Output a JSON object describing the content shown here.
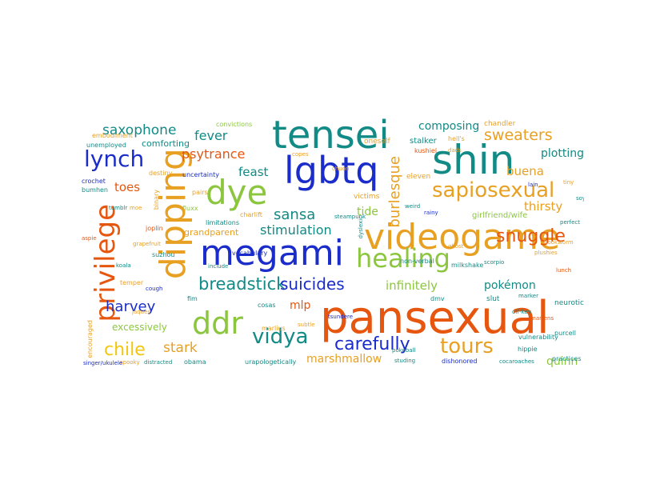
{
  "palette": {
    "orange": "#e6560f",
    "green": "#8cc63f",
    "blue": "#1a2cc9",
    "teal": "#128a85",
    "amber": "#e8a023",
    "gold": "#d99a1e",
    "yellow": "#f2c80f",
    "cyan": "#1fa5cf",
    "red": "#d8332b",
    "purple": "#7a46b8"
  },
  "words": [
    {
      "text": "pansexual",
      "color": "#e6560f"
    },
    {
      "text": "videogame",
      "color": "#e8a023"
    },
    {
      "text": "megami",
      "color": "#1a2cc9"
    },
    {
      "text": "dipping",
      "color": "#e8a023"
    },
    {
      "text": "tensei",
      "color": "#128a85"
    },
    {
      "text": "shin",
      "color": "#128a85"
    },
    {
      "text": "lgbtq",
      "color": "#1a2cc9"
    },
    {
      "text": "dye",
      "color": "#8cc63f"
    },
    {
      "text": "privilege",
      "color": "#e6560f"
    },
    {
      "text": "healing",
      "color": "#8cc63f"
    },
    {
      "text": "ddr",
      "color": "#8cc63f"
    },
    {
      "text": "sapiosexual",
      "color": "#e8a023"
    },
    {
      "text": "lynch",
      "color": "#1a2cc9"
    },
    {
      "text": "snuggle",
      "color": "#e6560f"
    },
    {
      "text": "vidya",
      "color": "#128a85"
    },
    {
      "text": "carefully",
      "color": "#1a2cc9"
    },
    {
      "text": "tours",
      "color": "#e8a023"
    },
    {
      "text": "chile",
      "color": "#f2c80f"
    },
    {
      "text": "breadstick",
      "color": "#128a85"
    },
    {
      "text": "suicides",
      "color": "#1a2cc9"
    },
    {
      "text": "sweaters",
      "color": "#e8a023"
    },
    {
      "text": "saxophone",
      "color": "#128a85"
    },
    {
      "text": "burlesque",
      "color": "#e8a023"
    },
    {
      "text": "harvey",
      "color": "#1a2cc9"
    },
    {
      "text": "stark",
      "color": "#e8a023"
    },
    {
      "text": "fever",
      "color": "#128a85"
    },
    {
      "text": "psytrance",
      "color": "#e6560f"
    },
    {
      "text": "sansa",
      "color": "#128a85"
    },
    {
      "text": "stimulation",
      "color": "#128a85"
    },
    {
      "text": "composing",
      "color": "#128a85"
    },
    {
      "text": "plotting",
      "color": "#128a85"
    },
    {
      "text": "buena",
      "color": "#e8a023"
    },
    {
      "text": "thirsty",
      "color": "#e8a023"
    },
    {
      "text": "infinitely",
      "color": "#8cc63f"
    },
    {
      "text": "pokémon",
      "color": "#128a85"
    },
    {
      "text": "quinn",
      "color": "#8cc63f"
    },
    {
      "text": "feast",
      "color": "#128a85"
    },
    {
      "text": "toes",
      "color": "#e6560f"
    },
    {
      "text": "mlp",
      "color": "#e6560f"
    },
    {
      "text": "marshmallow",
      "color": "#e8a023"
    },
    {
      "text": "tide",
      "color": "#8cc63f"
    },
    {
      "text": "excessively",
      "color": "#8cc63f"
    },
    {
      "text": "comforting",
      "color": "#128a85"
    },
    {
      "text": "grandparent",
      "color": "#e8a023"
    },
    {
      "text": "girlfriend/wife",
      "color": "#8cc63f"
    },
    {
      "text": "stalker",
      "color": "#128a85"
    },
    {
      "text": "eleven",
      "color": "#e8a023"
    },
    {
      "text": "victims",
      "color": "#e8a023"
    },
    {
      "text": "oneself",
      "color": "#e8a023"
    },
    {
      "text": "convictions",
      "color": "#8cc63f"
    },
    {
      "text": "destiny",
      "color": "#e8a023"
    },
    {
      "text": "uncertainty",
      "color": "#1a2cc9"
    },
    {
      "text": "pairs",
      "color": "#e8a023"
    },
    {
      "text": "fluxx",
      "color": "#8cc63f"
    },
    {
      "text": "limitations",
      "color": "#128a85"
    },
    {
      "text": "charlift",
      "color": "#e8a023"
    },
    {
      "text": "vocabulary",
      "color": "#1a2cc9"
    },
    {
      "text": "crochet",
      "color": "#1a2cc9"
    },
    {
      "text": "bumhen",
      "color": "#128a85"
    },
    {
      "text": "unemployed",
      "color": "#128a85"
    },
    {
      "text": "embodiment",
      "color": "#e8a023"
    },
    {
      "text": "chandler",
      "color": "#e8a023"
    },
    {
      "text": "copes",
      "color": "#e8a023"
    },
    {
      "text": "chuon",
      "color": "#e8a023"
    },
    {
      "text": "kushiel",
      "color": "#e6560f"
    },
    {
      "text": "dads",
      "color": "#e8a023"
    },
    {
      "text": "hell's",
      "color": "#e8a023"
    },
    {
      "text": "binary",
      "color": "#e8a023"
    },
    {
      "text": "joplin",
      "color": "#e6560f"
    },
    {
      "text": "suzhou",
      "color": "#128a85"
    },
    {
      "text": "temper",
      "color": "#e8a023"
    },
    {
      "text": "fim",
      "color": "#128a85"
    },
    {
      "text": "cosas",
      "color": "#128a85"
    },
    {
      "text": "marlius",
      "color": "#e8a023"
    },
    {
      "text": "subtle",
      "color": "#e8a023"
    },
    {
      "text": "dmv",
      "color": "#128a85"
    },
    {
      "text": "slut",
      "color": "#128a85"
    },
    {
      "text": "marker",
      "color": "#128a85"
    },
    {
      "text": "neurotic",
      "color": "#128a85"
    },
    {
      "text": "martens",
      "color": "#e6560f"
    },
    {
      "text": "vulnerability",
      "color": "#128a85"
    },
    {
      "text": "hippie",
      "color": "#128a85"
    },
    {
      "text": "purcell",
      "color": "#128a85"
    },
    {
      "text": "practices",
      "color": "#128a85"
    },
    {
      "text": "cocaroaches",
      "color": "#128a85"
    },
    {
      "text": "dishonored",
      "color": "#1a2cc9"
    },
    {
      "text": "studing",
      "color": "#128a85"
    },
    {
      "text": "urapologetically",
      "color": "#128a85"
    },
    {
      "text": "obama",
      "color": "#128a85"
    },
    {
      "text": "distracted",
      "color": "#128a85"
    },
    {
      "text": "spooky",
      "color": "#e8a023"
    },
    {
      "text": "singer/ukulele",
      "color": "#1a2cc9"
    },
    {
      "text": "jaques",
      "color": "#e8a023"
    },
    {
      "text": "milkshake",
      "color": "#128a85"
    },
    {
      "text": "non-verbal",
      "color": "#128a85"
    },
    {
      "text": "off-key",
      "color": "#128a85"
    },
    {
      "text": "steampunk",
      "color": "#128a85"
    },
    {
      "text": "tsundere",
      "color": "#1a2cc9"
    },
    {
      "text": "include",
      "color": "#128a85"
    },
    {
      "text": "encouraged",
      "color": "#e8a023"
    },
    {
      "text": "pokeball",
      "color": "#128a85"
    },
    {
      "text": "tiny",
      "color": "#e8a023"
    },
    {
      "text": "lain",
      "color": "#1a2cc9"
    },
    {
      "text": "soy",
      "color": "#128a85"
    },
    {
      "text": "ghost",
      "color": "#e8a023"
    },
    {
      "text": "aspie",
      "color": "#e6560f"
    },
    {
      "text": "tumblr",
      "color": "#128a85"
    },
    {
      "text": "moe",
      "color": "#e8a023"
    },
    {
      "text": "dyslexic",
      "color": "#128a85"
    },
    {
      "text": "rainy",
      "color": "#1a2cc9"
    },
    {
      "text": "plushies",
      "color": "#e8a023"
    },
    {
      "text": "scorpio",
      "color": "#128a85"
    },
    {
      "text": "grapefruit",
      "color": "#e8a023"
    },
    {
      "text": "koala",
      "color": "#128a85"
    },
    {
      "text": "weird",
      "color": "#128a85"
    },
    {
      "text": "lunch",
      "color": "#e6560f"
    },
    {
      "text": "perfect",
      "color": "#128a85"
    },
    {
      "text": "cough",
      "color": "#1a2cc9"
    },
    {
      "text": "bookworm",
      "color": "#e8a023"
    }
  ]
}
